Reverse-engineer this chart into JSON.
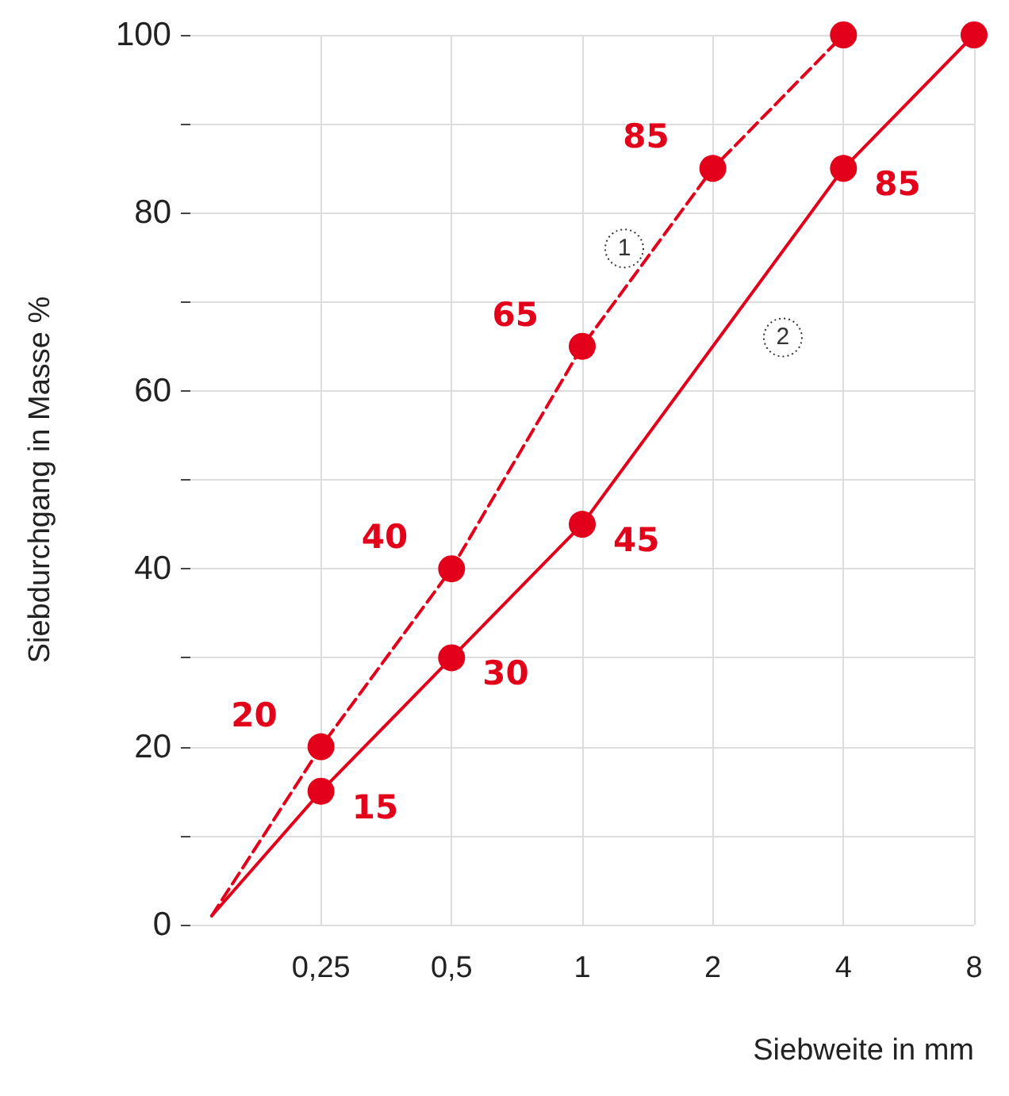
{
  "chart_data": {
    "type": "line",
    "xlabel": "Siebweite in mm",
    "ylabel": "Siebdurchgang in Masse %",
    "log": "x",
    "xlim": [
      0.125,
      8
    ],
    "xticks": [
      {
        "value": 0.25,
        "label": "0,25"
      },
      {
        "value": 0.5,
        "label": "0,5"
      },
      1,
      2,
      4,
      8
    ],
    "ylim": [
      0,
      100
    ],
    "yticks": [
      0,
      {
        "value": 10,
        "label": null
      },
      20,
      {
        "value": 30,
        "label": null
      },
      40,
      {
        "value": 50,
        "label": null
      },
      60,
      {
        "value": 70,
        "label": null
      },
      80,
      {
        "value": 90,
        "label": null
      },
      100
    ],
    "grid": true,
    "marker": "circle",
    "series": [
      {
        "color": "#e2001a",
        "line_style": "dashed",
        "x": [
          0.14,
          0.25,
          0.5,
          1,
          2,
          4
        ],
        "values": [
          1,
          20,
          40,
          65,
          85,
          100
        ],
        "value_labels": [
          null,
          "20",
          "40",
          "65",
          "85",
          null
        ]
      },
      {
        "color": "#e2001a",
        "line_style": "solid",
        "x": [
          0.14,
          0.25,
          0.5,
          1,
          4,
          8
        ],
        "values": [
          1,
          15,
          30,
          45,
          85,
          100
        ],
        "value_labels": [
          null,
          "15",
          "30",
          "45",
          "85",
          null
        ]
      }
    ],
    "annotations": [
      {
        "text": "1",
        "x": 1.25,
        "y": 76
      },
      {
        "text": "2",
        "x": 2.9,
        "y": 66
      }
    ]
  }
}
